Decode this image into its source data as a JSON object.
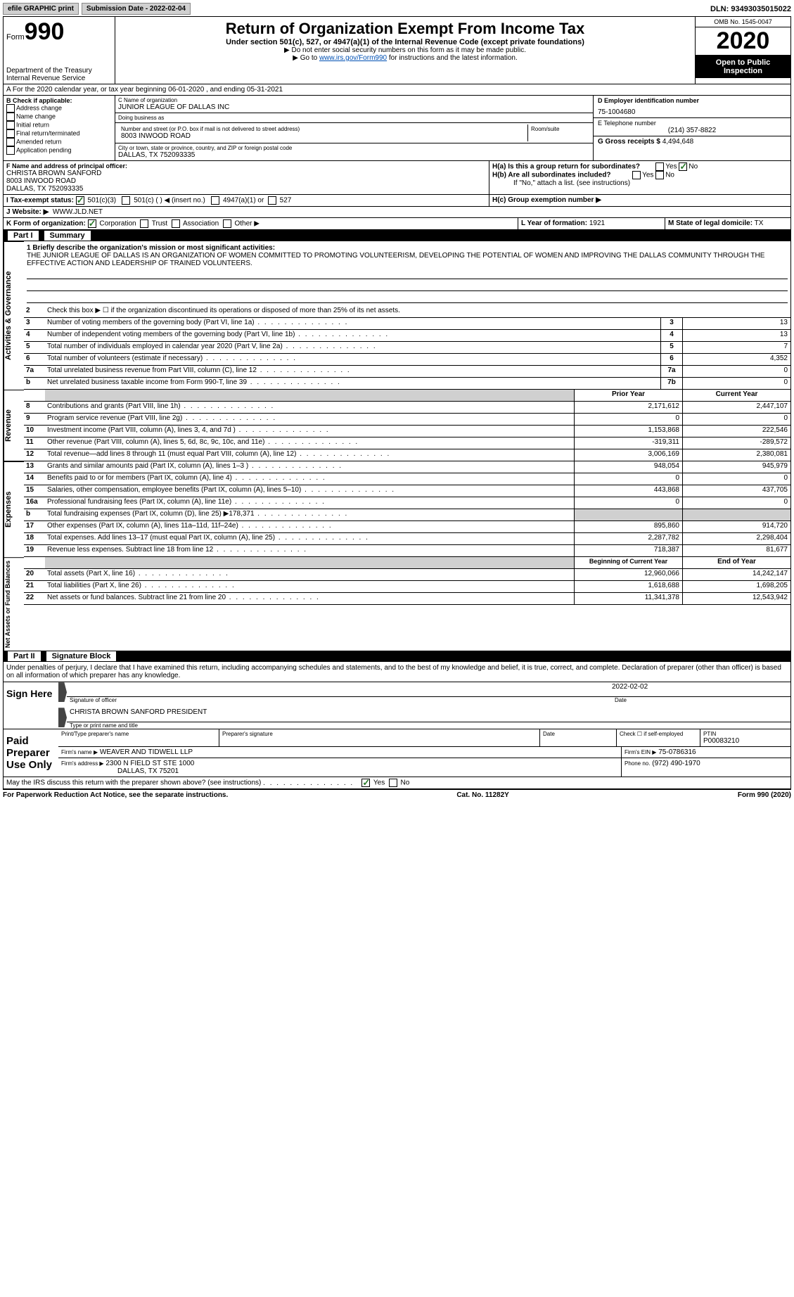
{
  "top": {
    "efile": "efile GRAPHIC print",
    "submission_label": "Submission Date - 2022-02-04",
    "dln": "DLN: 93493035015022"
  },
  "header": {
    "form_label": "Form",
    "form_num": "990",
    "dept": "Department of the Treasury",
    "irs": "Internal Revenue Service",
    "title": "Return of Organization Exempt From Income Tax",
    "subtitle": "Under section 501(c), 527, or 4947(a)(1) of the Internal Revenue Code (except private foundations)",
    "note1": "▶ Do not enter social security numbers on this form as it may be made public.",
    "note2_pre": "▶ Go to ",
    "note2_link": "www.irs.gov/Form990",
    "note2_post": " for instructions and the latest information.",
    "omb": "OMB No. 1545-0047",
    "year": "2020",
    "open": "Open to Public Inspection"
  },
  "rowA": "A For the 2020 calendar year, or tax year beginning 06-01-2020    , and ending 05-31-2021",
  "B": {
    "title": "B Check if applicable:",
    "addr": "Address change",
    "name": "Name change",
    "initial": "Initial return",
    "final": "Final return/terminated",
    "amended": "Amended return",
    "app": "Application pending"
  },
  "C": {
    "name_label": "C Name of organization",
    "name": "JUNIOR LEAGUE OF DALLAS INC",
    "dba_label": "Doing business as",
    "dba": "",
    "street_label": "Number and street (or P.O. box if mail is not delivered to street address)",
    "room_label": "Room/suite",
    "street": "8003 INWOOD ROAD",
    "city_label": "City or town, state or province, country, and ZIP or foreign postal code",
    "city": "DALLAS, TX  752093335"
  },
  "D": {
    "label": "D Employer identification number",
    "value": "75-1004680"
  },
  "E": {
    "label": "E Telephone number",
    "value": "(214) 357-8822"
  },
  "G": {
    "label": "G Gross receipts $",
    "value": "4,494,648"
  },
  "F": {
    "label": "F  Name and address of principal officer:",
    "name": "CHRISTA BROWN SANFORD",
    "addr1": "8003 INWOOD ROAD",
    "addr2": "DALLAS, TX  752093335"
  },
  "H": {
    "a": "H(a)  Is this a group return for subordinates?",
    "b": "H(b)  Are all subordinates included?",
    "b_note": "If \"No,\" attach a list. (see instructions)",
    "c": "H(c)  Group exemption number ▶"
  },
  "I": {
    "label": "I    Tax-exempt status:",
    "o1": "501(c)(3)",
    "o2": "501(c) (  ) ◀ (insert no.)",
    "o3": "4947(a)(1) or",
    "o4": "527"
  },
  "J": {
    "label": "J   Website: ▶",
    "value": "WWW.JLD.NET"
  },
  "K": {
    "label": "K Form of organization:",
    "corp": "Corporation",
    "trust": "Trust",
    "assoc": "Association",
    "other": "Other ▶"
  },
  "L": {
    "label": "L Year of formation:",
    "value": "1921"
  },
  "M": {
    "label": "M State of legal domicile:",
    "value": "TX"
  },
  "part1": {
    "title": "Summary",
    "q1_label": "1  Briefly describe the organization's mission or most significant activities:",
    "mission": "THE JUNIOR LEAGUE OF DALLAS IS AN ORGANIZATION OF WOMEN COMMITTED TO PROMOTING VOLUNTEERISM, DEVELOPING THE POTENTIAL OF WOMEN AND IMPROVING THE DALLAS COMMUNITY THROUGH THE EFFECTIVE ACTION AND LEADERSHIP OF TRAINED VOLUNTEERS.",
    "q2": "Check this box ▶ ☐ if the organization discontinued its operations or disposed of more than 25% of its net assets.",
    "lines_gov": [
      {
        "n": "3",
        "d": "Number of voting members of the governing body (Part VI, line 1a)",
        "b": "3",
        "v": "13"
      },
      {
        "n": "4",
        "d": "Number of independent voting members of the governing body (Part VI, line 1b)",
        "b": "4",
        "v": "13"
      },
      {
        "n": "5",
        "d": "Total number of individuals employed in calendar year 2020 (Part V, line 2a)",
        "b": "5",
        "v": "7"
      },
      {
        "n": "6",
        "d": "Total number of volunteers (estimate if necessary)",
        "b": "6",
        "v": "4,352"
      },
      {
        "n": "7a",
        "d": "Total unrelated business revenue from Part VIII, column (C), line 12",
        "b": "7a",
        "v": "0"
      },
      {
        "n": "b",
        "d": "Net unrelated business taxable income from Form 990-T, line 39",
        "b": "7b",
        "v": "0"
      }
    ],
    "col_prior": "Prior Year",
    "col_current": "Current Year",
    "lines_rev": [
      {
        "n": "8",
        "d": "Contributions and grants (Part VIII, line 1h)",
        "p": "2,171,612",
        "c": "2,447,107"
      },
      {
        "n": "9",
        "d": "Program service revenue (Part VIII, line 2g)",
        "p": "0",
        "c": "0"
      },
      {
        "n": "10",
        "d": "Investment income (Part VIII, column (A), lines 3, 4, and 7d )",
        "p": "1,153,868",
        "c": "222,546"
      },
      {
        "n": "11",
        "d": "Other revenue (Part VIII, column (A), lines 5, 6d, 8c, 9c, 10c, and 11e)",
        "p": "-319,311",
        "c": "-289,572"
      },
      {
        "n": "12",
        "d": "Total revenue—add lines 8 through 11 (must equal Part VIII, column (A), line 12)",
        "p": "3,006,169",
        "c": "2,380,081"
      }
    ],
    "lines_exp": [
      {
        "n": "13",
        "d": "Grants and similar amounts paid (Part IX, column (A), lines 1–3 )",
        "p": "948,054",
        "c": "945,979"
      },
      {
        "n": "14",
        "d": "Benefits paid to or for members (Part IX, column (A), line 4)",
        "p": "0",
        "c": "0"
      },
      {
        "n": "15",
        "d": "Salaries, other compensation, employee benefits (Part IX, column (A), lines 5–10)",
        "p": "443,868",
        "c": "437,705"
      },
      {
        "n": "16a",
        "d": "Professional fundraising fees (Part IX, column (A), line 11e)",
        "p": "0",
        "c": "0"
      },
      {
        "n": "b",
        "d": "Total fundraising expenses (Part IX, column (D), line 25) ▶178,371",
        "p": "",
        "c": "",
        "gray": true
      },
      {
        "n": "17",
        "d": "Other expenses (Part IX, column (A), lines 11a–11d, 11f–24e)",
        "p": "895,860",
        "c": "914,720"
      },
      {
        "n": "18",
        "d": "Total expenses. Add lines 13–17 (must equal Part IX, column (A), line 25)",
        "p": "2,287,782",
        "c": "2,298,404"
      },
      {
        "n": "19",
        "d": "Revenue less expenses. Subtract line 18 from line 12",
        "p": "718,387",
        "c": "81,677"
      }
    ],
    "col_begin": "Beginning of Current Year",
    "col_end": "End of Year",
    "lines_net": [
      {
        "n": "20",
        "d": "Total assets (Part X, line 16)",
        "p": "12,960,066",
        "c": "14,242,147"
      },
      {
        "n": "21",
        "d": "Total liabilities (Part X, line 26)",
        "p": "1,618,688",
        "c": "1,698,205"
      },
      {
        "n": "22",
        "d": "Net assets or fund balances. Subtract line 21 from line 20",
        "p": "11,341,378",
        "c": "12,543,942"
      }
    ]
  },
  "part2": {
    "title": "Signature Block",
    "declaration": "Under penalties of perjury, I declare that I have examined this return, including accompanying schedules and statements, and to the best of my knowledge and belief, it is true, correct, and complete. Declaration of preparer (other than officer) is based on all information of which preparer has any knowledge.",
    "sign_here": "Sign Here",
    "sig_officer": "Signature of officer",
    "sig_date": "Date",
    "sig_date_val": "2022-02-02",
    "officer_name": "CHRISTA BROWN SANFORD PRESIDENT",
    "officer_type": "Type or print name and title",
    "paid": "Paid Preparer Use Only",
    "prep_name_label": "Print/Type preparer's name",
    "prep_sig_label": "Preparer's signature",
    "date_label": "Date",
    "check_self": "Check ☐ if self-employed",
    "ptin_label": "PTIN",
    "ptin": "P00083210",
    "firm_name_label": "Firm's name    ▶",
    "firm_name": "WEAVER AND TIDWELL LLP",
    "firm_ein_label": "Firm's EIN ▶",
    "firm_ein": "75-0786316",
    "firm_addr_label": "Firm's address ▶",
    "firm_addr1": "2300 N FIELD ST STE 1000",
    "firm_addr2": "DALLAS, TX  75201",
    "phone_label": "Phone no.",
    "phone": "(972) 490-1970",
    "discuss": "May the IRS discuss this return with the preparer shown above? (see instructions)"
  },
  "footer": {
    "left": "For Paperwork Reduction Act Notice, see the separate instructions.",
    "center": "Cat. No. 11282Y",
    "right": "Form 990 (2020)"
  }
}
